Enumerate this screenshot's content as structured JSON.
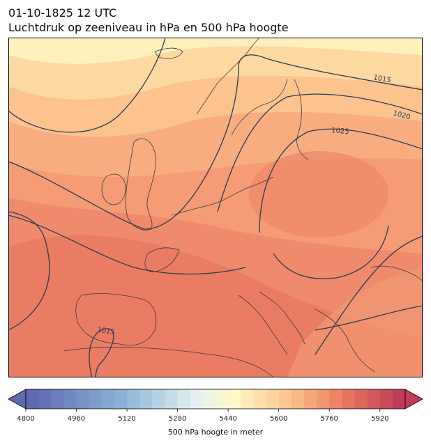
{
  "title": {
    "line1": "01-10-1825 12 UTC",
    "line2": "Luchtdruk op zeeniveau in hPa en 500 hPa hoogte"
  },
  "isobar_labels": [
    "1015",
    "1020",
    "1025",
    "1015"
  ],
  "colorbar": {
    "label": "500 hPa hoogte in meter",
    "min": 4800,
    "max": 6000,
    "step": 40,
    "ticks": [
      "4800",
      "4960",
      "5120",
      "5280",
      "5440",
      "5600",
      "5760",
      "5920"
    ]
  },
  "colors": {
    "map_frame": "#000000",
    "isobar": "#2b3b52",
    "coastline": "#3a3a3a",
    "height_low": "#6a74b8",
    "height_mid": "#fffacd",
    "height_high": "#c0405a"
  }
}
